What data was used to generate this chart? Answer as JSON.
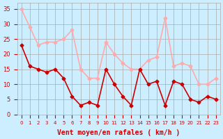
{
  "hours": [
    0,
    1,
    2,
    3,
    4,
    5,
    6,
    7,
    8,
    9,
    10,
    11,
    12,
    13,
    14,
    15,
    16,
    17,
    18,
    19,
    20,
    21,
    22,
    23
  ],
  "avg_wind": [
    23,
    16,
    15,
    14,
    15,
    12,
    6,
    3,
    4,
    3,
    15,
    10,
    6,
    3,
    15,
    10,
    11,
    3,
    11,
    10,
    5,
    4,
    6,
    5
  ],
  "gust_wind": [
    35,
    29,
    23,
    24,
    24,
    25,
    28,
    15,
    12,
    12,
    24,
    20,
    17,
    15,
    15,
    18,
    19,
    32,
    16,
    17,
    16,
    10,
    10,
    12
  ],
  "avg_color": "#cc0000",
  "gust_color": "#ffaaaa",
  "bg_color": "#cceeff",
  "grid_color": "#aaaaaa",
  "xlabel": "Vent moyen/en rafales ( km/h )",
  "xlabel_color": "#cc0000",
  "ylim": [
    0,
    37
  ],
  "yticks": [
    0,
    5,
    10,
    15,
    20,
    25,
    30,
    35
  ],
  "tick_color": "#cc0000",
  "marker": "D",
  "markersize": 2.5,
  "linewidth": 1.2
}
